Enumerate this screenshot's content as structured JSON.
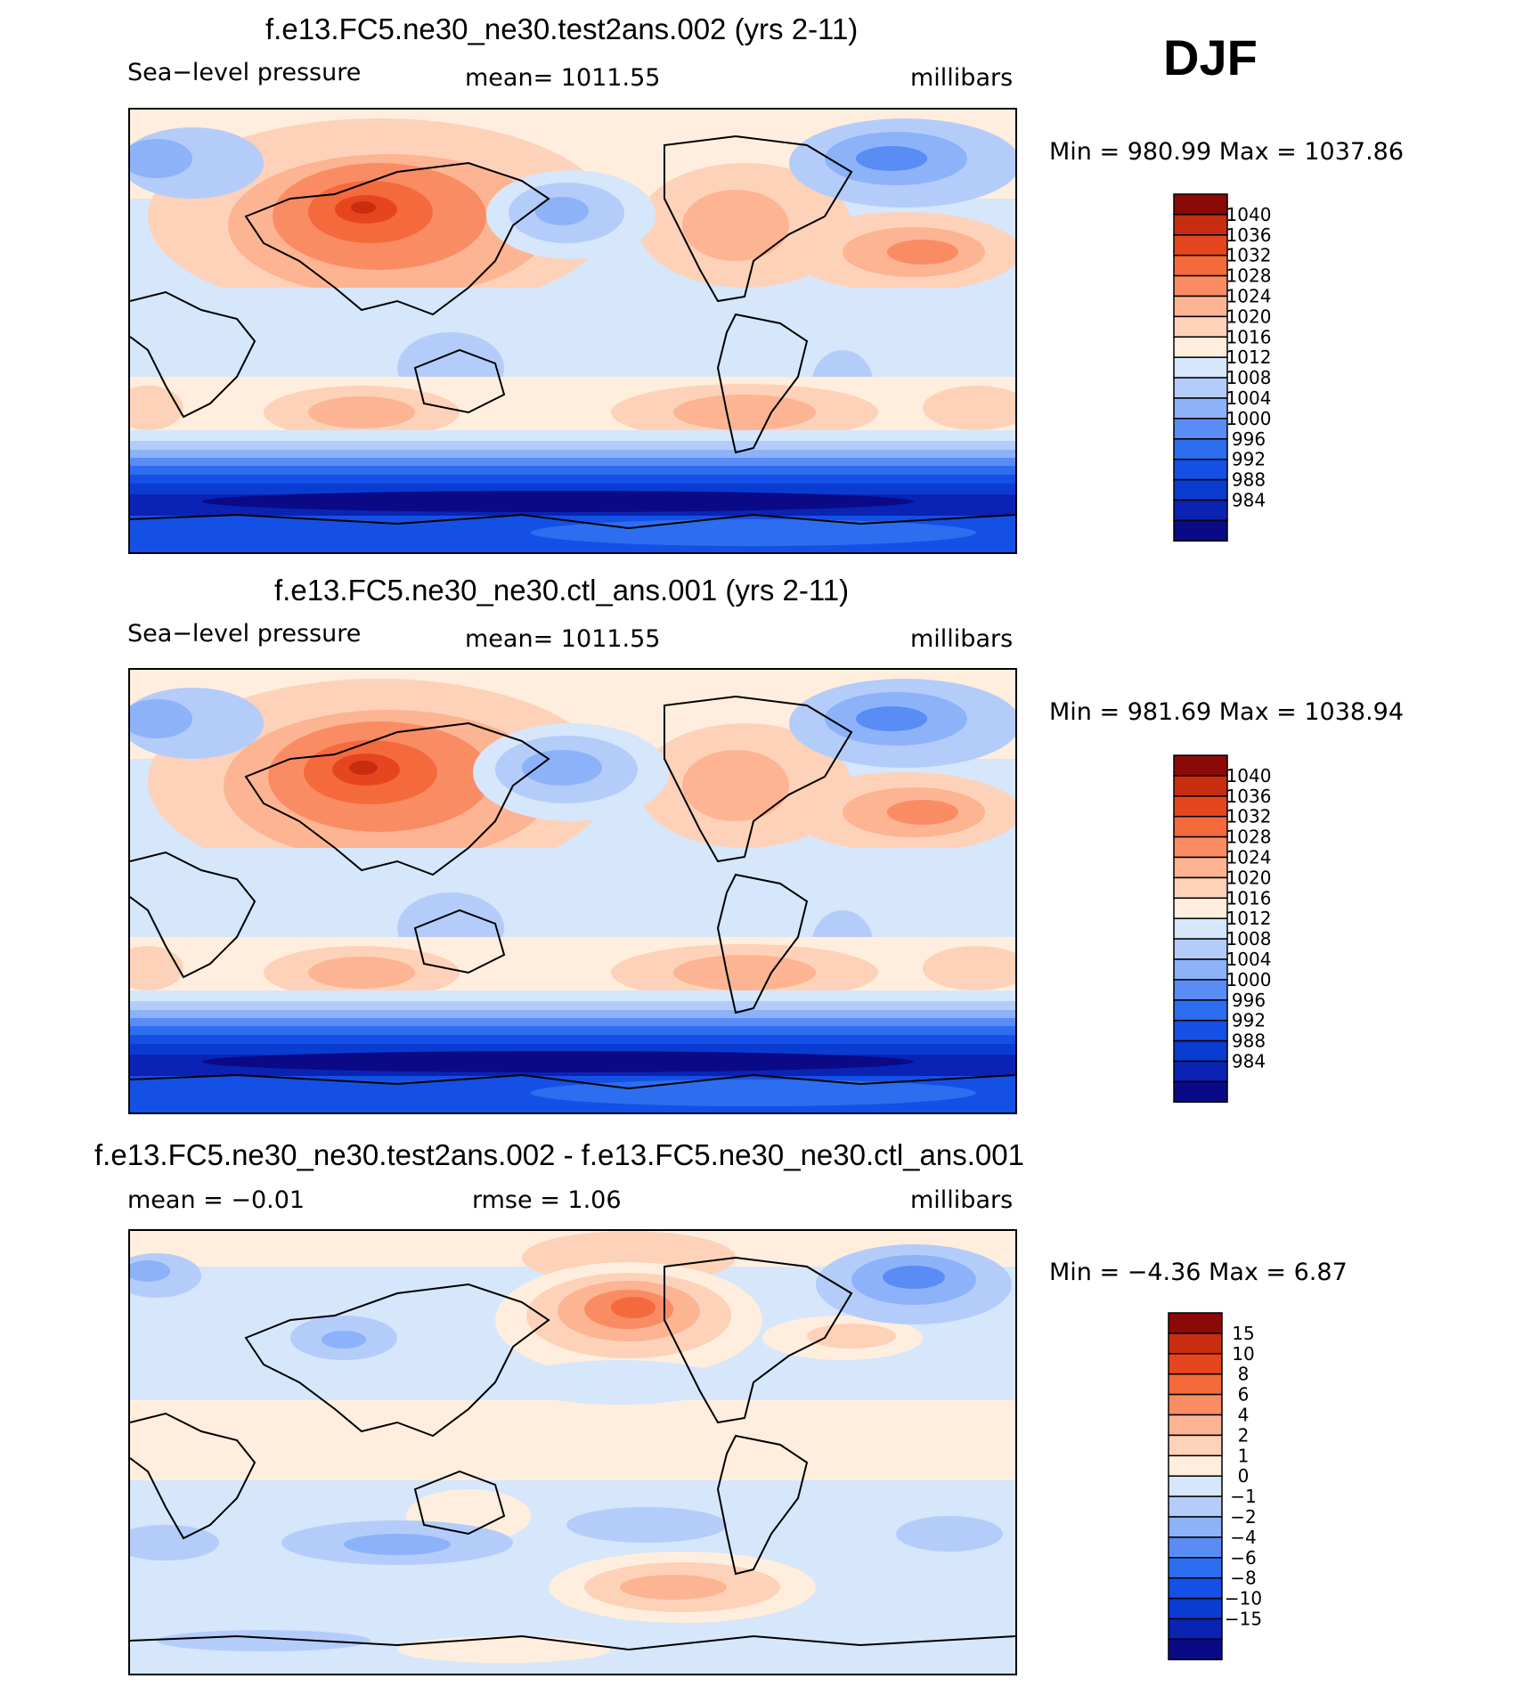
{
  "season": "DJF",
  "colors": {
    "abs_levels": [
      "#0a0a87",
      "#0a23b4",
      "#0a3cd2",
      "#1450e6",
      "#2d6ef0",
      "#5a8cf5",
      "#8cb2fa",
      "#b4ccfa",
      "#d6e6fb",
      "#ffeedd",
      "#fdd2b9",
      "#fcb493",
      "#fa8c64",
      "#f56a3c",
      "#e6461e",
      "#c82d0f",
      "#8c0a05"
    ],
    "diff_levels": [
      "#0a0a87",
      "#0a23b4",
      "#0a3cd2",
      "#1450e6",
      "#2d6ef0",
      "#5a8cf5",
      "#8cb2fa",
      "#b4ccfa",
      "#d6e6fb",
      "#ffeedd",
      "#fdd2b9",
      "#fcb493",
      "#fa8c64",
      "#f56a3c",
      "#e6461e",
      "#c82d0f",
      "#8c0a05"
    ]
  },
  "panels": [
    {
      "title": "f.e13.FC5.ne30_ne30.test2ans.002 (yrs 2-11)",
      "left": "Sea−level pressure",
      "center": "mean=  1011.55",
      "right": "millibars",
      "minmax": "Min  =  980.99  Max  =  1037.86",
      "levels": [
        "1040",
        "1036",
        "1032",
        "1028",
        "1024",
        "1020",
        "1016",
        "1012",
        "1008",
        "1004",
        "1000",
        "996",
        "992",
        "988",
        "984"
      ]
    },
    {
      "title": "f.e13.FC5.ne30_ne30.ctl_ans.001 (yrs 2-11)",
      "left": "Sea−level pressure",
      "center": "mean=  1011.55",
      "right": "millibars",
      "minmax": "Min  =  981.69  Max  =  1038.94",
      "levels": [
        "1040",
        "1036",
        "1032",
        "1028",
        "1024",
        "1020",
        "1016",
        "1012",
        "1008",
        "1004",
        "1000",
        "996",
        "992",
        "988",
        "984"
      ]
    },
    {
      "title": "f.e13.FC5.ne30_ne30.test2ans.002 - f.e13.FC5.ne30_ne30.ctl_ans.001",
      "left": "mean  =    −0.01",
      "center": "rmse  =     1.06",
      "right": "millibars",
      "minmax": "Min  =    −4.36  Max  =      6.87",
      "levels": [
        "15",
        "10",
        "8",
        "6",
        "4",
        "2",
        "1",
        "0",
        "−1",
        "−2",
        "−4",
        "−6",
        "−8",
        "−10",
        "−15"
      ]
    }
  ]
}
